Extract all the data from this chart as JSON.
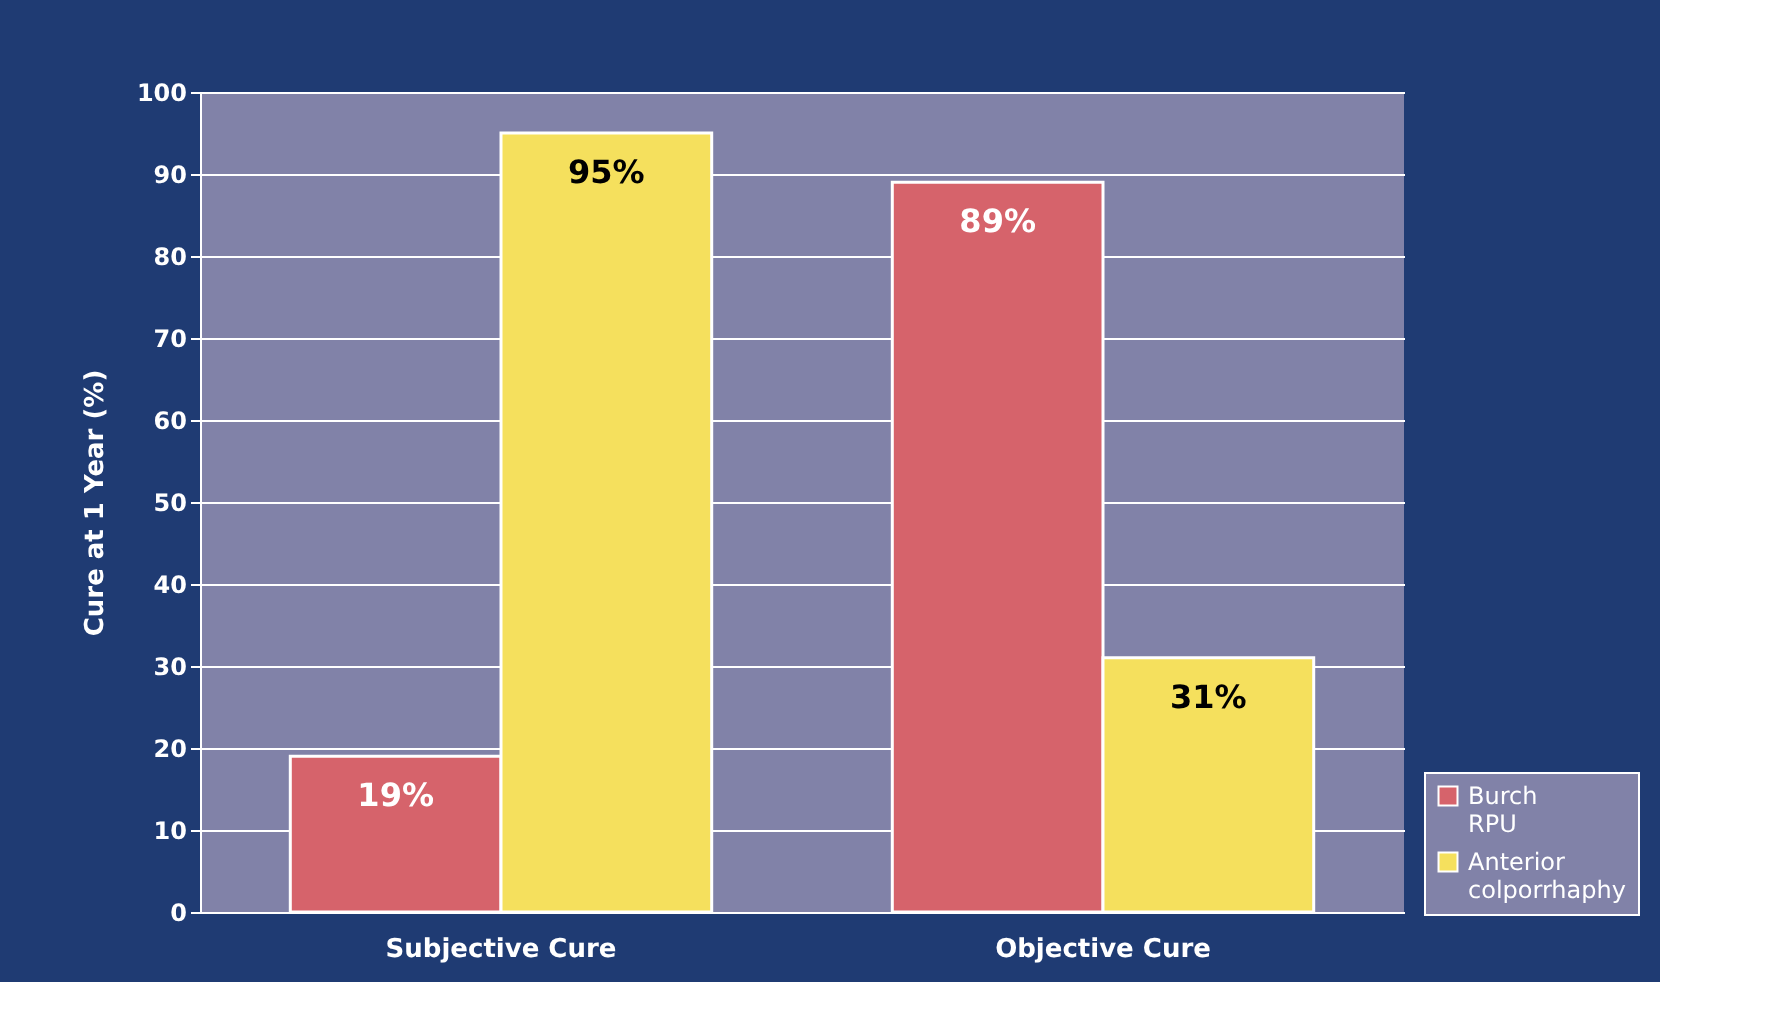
{
  "chart_data": {
    "type": "bar",
    "ylabel": "Cure at 1 Year (%)",
    "categories": [
      "Subjective Cure",
      "Objective Cure"
    ],
    "series": [
      {
        "name": "Burch RPU",
        "color": "#d6636b",
        "values": [
          19,
          89
        ],
        "value_labels": [
          "19%",
          "89%"
        ]
      },
      {
        "name": "Anterior colporrhaphy",
        "color": "#f5e05d",
        "values": [
          95,
          31
        ],
        "value_labels": [
          "95%",
          "31%"
        ]
      }
    ],
    "ylim": [
      0,
      100
    ],
    "yticks": [
      0,
      10,
      20,
      30,
      40,
      50,
      60,
      70,
      80,
      90,
      100
    ],
    "grid": "y",
    "legend": "bottom right"
  }
}
